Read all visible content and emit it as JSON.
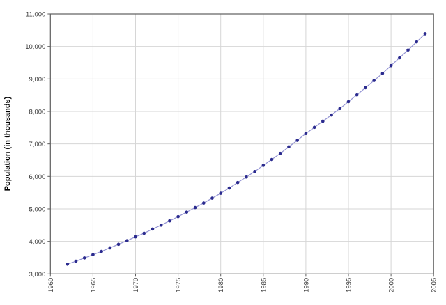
{
  "chart": {
    "y_axis_title": "Population (in thousands)"
  },
  "chart_data": {
    "type": "line",
    "title": "",
    "xlabel": "",
    "ylabel": "Population (in thousands)",
    "xlim": [
      1960,
      2005
    ],
    "ylim": [
      3000,
      11000
    ],
    "x_ticks": [
      1960,
      1965,
      1970,
      1975,
      1980,
      1985,
      1990,
      1995,
      2000,
      2005
    ],
    "y_ticks": [
      3000,
      4000,
      5000,
      6000,
      7000,
      8000,
      9000,
      10000,
      11000
    ],
    "grid": true,
    "legend": false,
    "marker": "circle",
    "marker_color": "#2b2b8e",
    "line_color": "#9393d3",
    "x": [
      1962,
      1963,
      1964,
      1965,
      1966,
      1967,
      1968,
      1969,
      1970,
      1971,
      1972,
      1973,
      1974,
      1975,
      1976,
      1977,
      1978,
      1979,
      1980,
      1981,
      1982,
      1983,
      1984,
      1985,
      1986,
      1987,
      1988,
      1989,
      1990,
      1991,
      1992,
      1993,
      1994,
      1995,
      1996,
      1997,
      1998,
      1999,
      2000,
      2001,
      2002,
      2003,
      2004
    ],
    "y": [
      3300,
      3390,
      3490,
      3590,
      3690,
      3800,
      3910,
      4020,
      4140,
      4250,
      4380,
      4500,
      4630,
      4760,
      4900,
      5040,
      5180,
      5330,
      5480,
      5640,
      5810,
      5980,
      6150,
      6340,
      6520,
      6710,
      6910,
      7110,
      7320,
      7510,
      7700,
      7890,
      8090,
      8300,
      8510,
      8730,
      8950,
      9170,
      9410,
      9650,
      9890,
      10140,
      10390
    ]
  }
}
